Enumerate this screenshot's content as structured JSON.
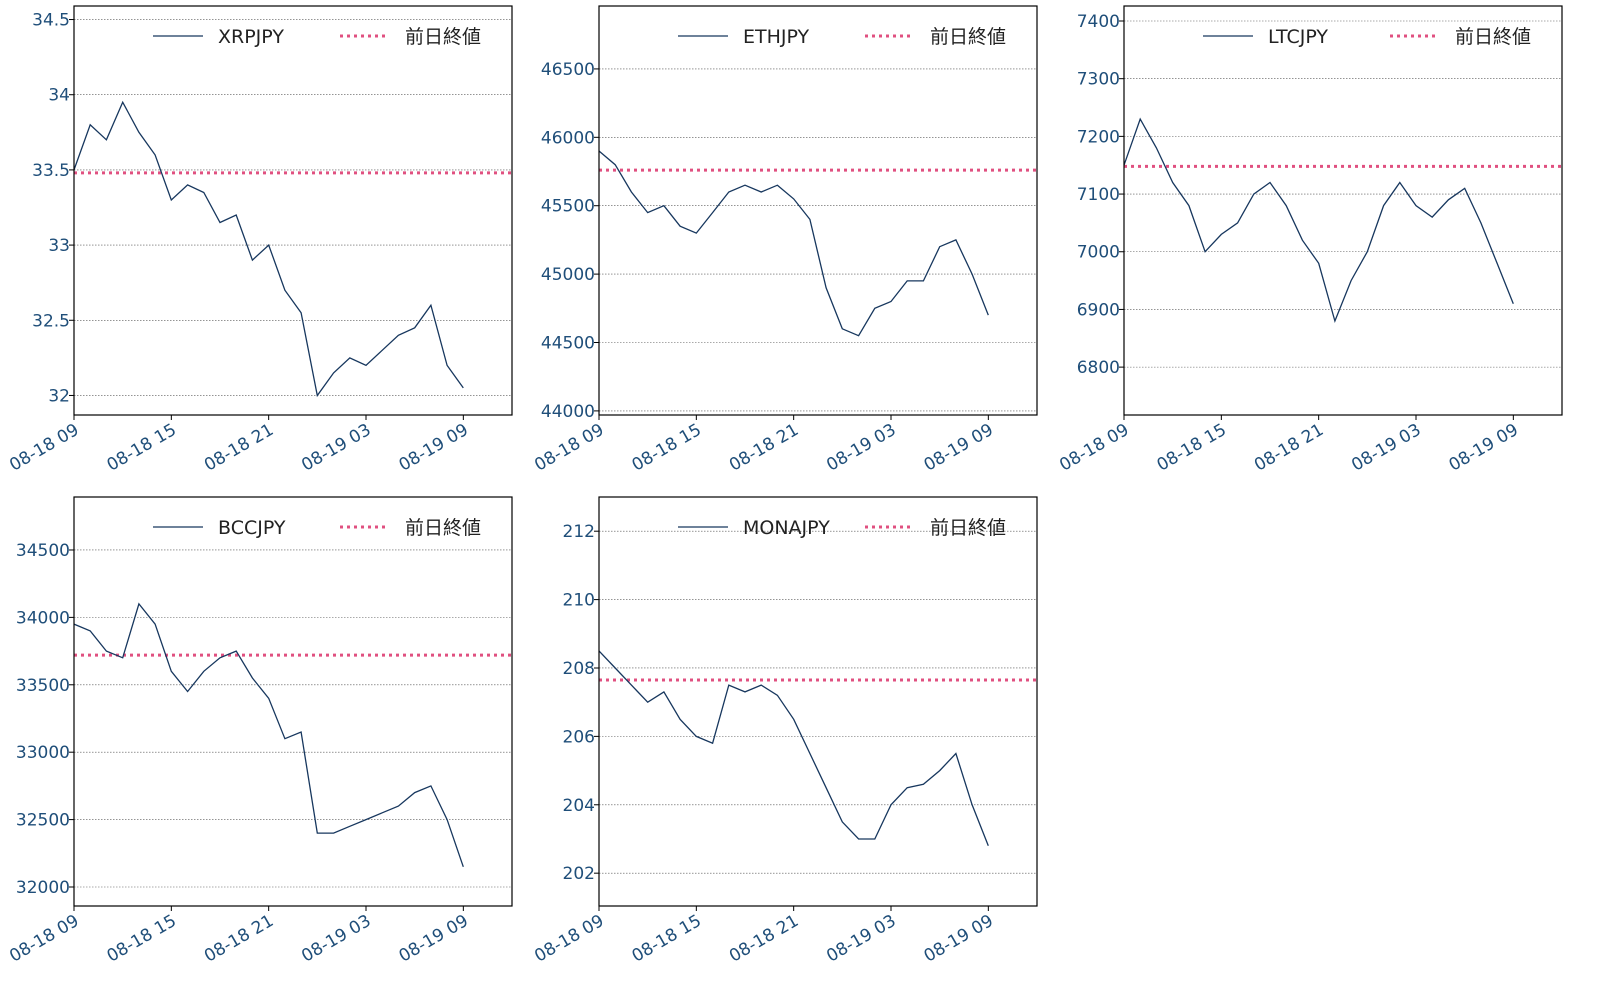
{
  "chart_data": [
    {
      "type": "line",
      "x": [
        "08-18 09",
        "08-18 10",
        "08-18 11",
        "08-18 12",
        "08-18 13",
        "08-18 14",
        "08-18 15",
        "08-18 16",
        "08-18 17",
        "08-18 18",
        "08-18 19",
        "08-18 20",
        "08-18 21",
        "08-18 22",
        "08-18 23",
        "08-19 00",
        "08-19 01",
        "08-19 02",
        "08-19 03",
        "08-19 04",
        "08-19 05",
        "08-19 06",
        "08-19 07",
        "08-19 08",
        "08-19 09"
      ],
      "series": [
        {
          "name": "XRPJPY",
          "color": "#17375e",
          "values": [
            33.5,
            33.8,
            33.7,
            33.95,
            33.75,
            33.6,
            33.3,
            33.4,
            33.35,
            33.15,
            33.2,
            32.9,
            33.0,
            32.7,
            32.55,
            32.0,
            32.15,
            32.25,
            32.2,
            32.3,
            32.4,
            32.45,
            32.6,
            32.2,
            32.05
          ]
        }
      ],
      "reference_line": {
        "name": "前日終値",
        "value": 33.48,
        "color": "#e05080"
      },
      "xlim": [
        "08-18 09",
        "08-19 12"
      ],
      "xticks": [
        "08-18 09",
        "08-18 15",
        "08-18 21",
        "08-19 03",
        "08-19 09"
      ],
      "ylim": [
        31.87,
        34.59
      ],
      "yticks": [
        32.0,
        32.5,
        33.0,
        33.5,
        34.0,
        34.5
      ],
      "grid": true,
      "legend": "upper right"
    },
    {
      "type": "line",
      "x": [
        "08-18 09",
        "08-18 10",
        "08-18 11",
        "08-18 12",
        "08-18 13",
        "08-18 14",
        "08-18 15",
        "08-18 16",
        "08-18 17",
        "08-18 18",
        "08-18 19",
        "08-18 20",
        "08-18 21",
        "08-18 22",
        "08-18 23",
        "08-19 00",
        "08-19 01",
        "08-19 02",
        "08-19 03",
        "08-19 04",
        "08-19 05",
        "08-19 06",
        "08-19 07",
        "08-19 08",
        "08-19 09"
      ],
      "series": [
        {
          "name": "ETHJPY",
          "color": "#17375e",
          "values": [
            45900,
            45800,
            45600,
            45450,
            45500,
            45350,
            45300,
            45450,
            45600,
            45650,
            45600,
            45650,
            45550,
            45400,
            44900,
            44600,
            44550,
            44750,
            44800,
            44950,
            44950,
            45200,
            45250,
            45000,
            44700
          ]
        }
      ],
      "reference_line": {
        "name": "前日終値",
        "value": 45760,
        "color": "#e05080"
      },
      "xlim": [
        "08-18 09",
        "08-19 12"
      ],
      "xticks": [
        "08-18 09",
        "08-18 15",
        "08-18 21",
        "08-19 03",
        "08-19 09"
      ],
      "ylim": [
        43970,
        46960
      ],
      "yticks": [
        44000,
        44500,
        45000,
        45500,
        46000,
        46500
      ],
      "grid": true,
      "legend": "upper right"
    },
    {
      "type": "line",
      "x": [
        "08-18 09",
        "08-18 10",
        "08-18 11",
        "08-18 12",
        "08-18 13",
        "08-18 14",
        "08-18 15",
        "08-18 16",
        "08-18 17",
        "08-18 18",
        "08-18 19",
        "08-18 20",
        "08-18 21",
        "08-18 22",
        "08-18 23",
        "08-19 00",
        "08-19 01",
        "08-19 02",
        "08-19 03",
        "08-19 04",
        "08-19 05",
        "08-19 06",
        "08-19 07",
        "08-19 08",
        "08-19 09"
      ],
      "series": [
        {
          "name": "LTCJPY",
          "color": "#17375e",
          "values": [
            7150,
            7230,
            7180,
            7120,
            7080,
            7000,
            7030,
            7050,
            7100,
            7120,
            7080,
            7020,
            6980,
            6880,
            6950,
            7000,
            7080,
            7120,
            7080,
            7060,
            7090,
            7110,
            7050,
            6980,
            6910
          ]
        }
      ],
      "reference_line": {
        "name": "前日終値",
        "value": 7148,
        "color": "#e05080"
      },
      "xlim": [
        "08-18 09",
        "08-19 12"
      ],
      "xticks": [
        "08-18 09",
        "08-18 15",
        "08-18 21",
        "08-19 03",
        "08-19 09"
      ],
      "ylim": [
        6717,
        7426
      ],
      "yticks": [
        6800,
        6900,
        7000,
        7100,
        7200,
        7300,
        7400
      ],
      "grid": true,
      "legend": "upper right"
    },
    {
      "type": "line",
      "x": [
        "08-18 09",
        "08-18 10",
        "08-18 11",
        "08-18 12",
        "08-18 13",
        "08-18 14",
        "08-18 15",
        "08-18 16",
        "08-18 17",
        "08-18 18",
        "08-18 19",
        "08-18 20",
        "08-18 21",
        "08-18 22",
        "08-18 23",
        "08-19 00",
        "08-19 01",
        "08-19 02",
        "08-19 03",
        "08-19 04",
        "08-19 05",
        "08-19 06",
        "08-19 07",
        "08-19 08",
        "08-19 09"
      ],
      "series": [
        {
          "name": "BCCJPY",
          "color": "#17375e",
          "values": [
            33950,
            33900,
            33750,
            33700,
            34100,
            33950,
            33600,
            33450,
            33600,
            33700,
            33750,
            33550,
            33400,
            33100,
            33150,
            32400,
            32400,
            32450,
            32500,
            32550,
            32600,
            32700,
            32750,
            32500,
            32150
          ]
        }
      ],
      "reference_line": {
        "name": "前日終値",
        "value": 33720,
        "color": "#e05080"
      },
      "xlim": [
        "08-18 09",
        "08-19 12"
      ],
      "xticks": [
        "08-18 09",
        "08-18 15",
        "08-18 21",
        "08-19 03",
        "08-19 09"
      ],
      "ylim": [
        31859,
        34893
      ],
      "yticks": [
        32000,
        32500,
        33000,
        33500,
        34000,
        34500
      ],
      "grid": true,
      "legend": "upper right"
    },
    {
      "type": "line",
      "x": [
        "08-18 09",
        "08-18 10",
        "08-18 11",
        "08-18 12",
        "08-18 13",
        "08-18 14",
        "08-18 15",
        "08-18 16",
        "08-18 17",
        "08-18 18",
        "08-18 19",
        "08-18 20",
        "08-18 21",
        "08-18 22",
        "08-18 23",
        "08-19 00",
        "08-19 01",
        "08-19 02",
        "08-19 03",
        "08-19 04",
        "08-19 05",
        "08-19 06",
        "08-19 07",
        "08-19 08",
        "08-19 09"
      ],
      "series": [
        {
          "name": "MONAJPY",
          "color": "#17375e",
          "values": [
            208.5,
            208,
            207.5,
            207,
            207.3,
            206.5,
            206,
            205.8,
            207.5,
            207.3,
            207.5,
            207.2,
            206.5,
            205.5,
            204.5,
            203.5,
            203,
            203,
            204,
            204.5,
            204.6,
            205,
            205.5,
            204,
            202.8
          ]
        }
      ],
      "reference_line": {
        "name": "前日終値",
        "value": 207.65,
        "color": "#e05080"
      },
      "xlim": [
        "08-18 09",
        "08-19 12"
      ],
      "xticks": [
        "08-18 09",
        "08-18 15",
        "08-18 21",
        "08-19 03",
        "08-19 09"
      ],
      "ylim": [
        201.04,
        213
      ],
      "yticks": [
        202,
        204,
        206,
        208,
        210,
        212
      ],
      "grid": true,
      "legend": "upper right"
    }
  ]
}
